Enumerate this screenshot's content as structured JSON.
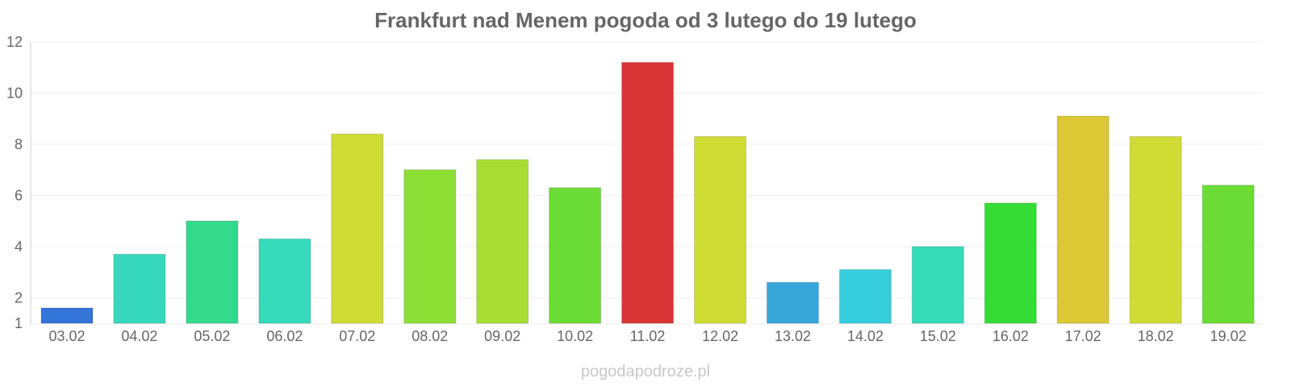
{
  "chart_data": {
    "type": "bar",
    "title": "Frankfurt nad Menem pogoda od 3 lutego do 19 lutego",
    "categories": [
      "03.02",
      "04.02",
      "05.02",
      "06.02",
      "07.02",
      "08.02",
      "09.02",
      "10.02",
      "11.02",
      "12.02",
      "13.02",
      "14.02",
      "15.02",
      "16.02",
      "17.02",
      "18.02",
      "19.02"
    ],
    "values": [
      1.6,
      3.7,
      5.0,
      4.3,
      8.4,
      7.0,
      7.4,
      6.3,
      11.2,
      8.3,
      2.6,
      3.1,
      4.0,
      5.7,
      9.1,
      8.3,
      6.4
    ],
    "colors": [
      "#3375d8",
      "#35d8bb",
      "#34d98c",
      "#35dbbb",
      "#cfdc33",
      "#8ddf35",
      "#aadd33",
      "#6cdd36",
      "#da3536",
      "#cfdc33",
      "#37a7da",
      "#36cedc",
      "#35dab6",
      "#35dc36",
      "#dbc833",
      "#cfdc33",
      "#6cdd36"
    ],
    "yticks": [
      1,
      2,
      4,
      6,
      8,
      10,
      12
    ],
    "ylim": [
      1,
      12
    ],
    "xlabel": "",
    "ylabel": "",
    "grid": true,
    "legend": "none"
  },
  "watermark": "pogodapodroze.pl"
}
